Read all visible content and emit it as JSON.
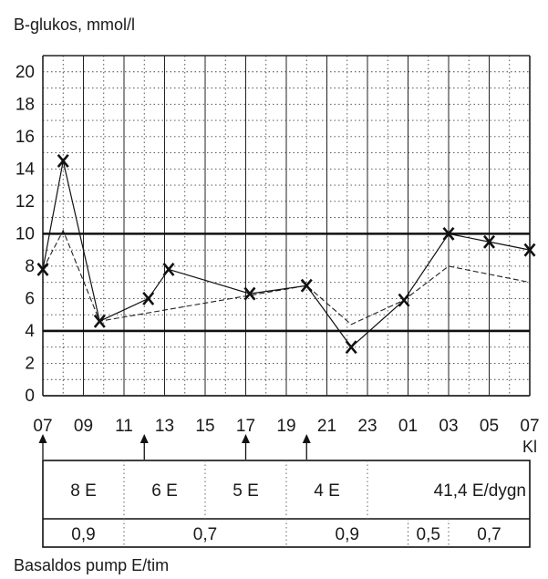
{
  "chart_data": {
    "type": "line",
    "ylabel": "B-glukos, mmol/l",
    "xlabel": "Kl",
    "ylim": [
      0,
      21
    ],
    "y_ticks": [
      "0",
      "2",
      "4",
      "6",
      "8",
      "10",
      "12",
      "14",
      "16",
      "18",
      "20"
    ],
    "x_tick_labels": [
      "07",
      "09",
      "11",
      "13",
      "15",
      "17",
      "19",
      "21",
      "23",
      "01",
      "03",
      "05",
      "07"
    ],
    "reference_lines": [
      4,
      10
    ],
    "series": [
      {
        "style": "solid-with-x-markers",
        "points": [
          {
            "hour": 7.0,
            "value": 7.8
          },
          {
            "hour": 8.0,
            "value": 14.5
          },
          {
            "hour": 9.8,
            "value": 4.6
          },
          {
            "hour": 12.2,
            "value": 6.0
          },
          {
            "hour": 13.2,
            "value": 7.8
          },
          {
            "hour": 17.2,
            "value": 6.3
          },
          {
            "hour": 20.0,
            "value": 6.8
          },
          {
            "hour": 22.2,
            "value": 3.0
          },
          {
            "hour": 24.8,
            "value": 5.9
          },
          {
            "hour": 27.0,
            "value": 10.0
          },
          {
            "hour": 29.0,
            "value": 9.5
          },
          {
            "hour": 31.0,
            "value": 9.0
          }
        ]
      },
      {
        "style": "dashed",
        "points": [
          {
            "hour": 7.0,
            "value": 7.8
          },
          {
            "hour": 8.0,
            "value": 10.2
          },
          {
            "hour": 9.8,
            "value": 4.6
          },
          {
            "hour": 20.0,
            "value": 6.8
          },
          {
            "hour": 22.2,
            "value": 4.4
          },
          {
            "hour": 24.8,
            "value": 5.9
          },
          {
            "hour": 27.0,
            "value": 8.0
          },
          {
            "hour": 31.0,
            "value": 7.0
          }
        ]
      }
    ],
    "bolus_arrow_hours": [
      7.0,
      12.0,
      17.0,
      20.0
    ],
    "bolus_doses": [
      {
        "label": "8 E",
        "start": 7,
        "end": 11
      },
      {
        "label": "6 E",
        "start": 11,
        "end": 15
      },
      {
        "label": "5 E",
        "start": 15,
        "end": 19
      },
      {
        "label": "4 E",
        "start": 19,
        "end": 23
      }
    ],
    "daily_total": "41,4 E/dygn",
    "basal_rates": [
      {
        "label": "0,9",
        "start": 7,
        "end": 11
      },
      {
        "label": "0,7",
        "start": 11,
        "end": 19
      },
      {
        "label": "0,9",
        "start": 19,
        "end": 25
      },
      {
        "label": "0,5",
        "start": 25,
        "end": 27
      },
      {
        "label": "0,7",
        "start": 27,
        "end": 31
      }
    ],
    "basal_caption": "Basaldos pump E/tim"
  }
}
